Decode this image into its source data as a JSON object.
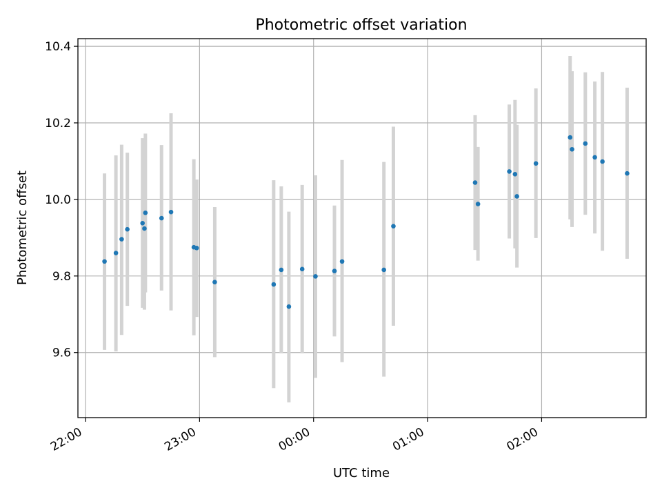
{
  "chart_data": {
    "type": "scatter",
    "title": "Photometric offset variation",
    "xlabel": "UTC time",
    "ylabel": "Photometric offset",
    "x_unit": "minutes after 22:00 UTC",
    "xlim": [
      -4,
      295
    ],
    "ylim": [
      9.43,
      10.42
    ],
    "x_ticks": [
      {
        "value": 0,
        "label": "22:00"
      },
      {
        "value": 60,
        "label": "23:00"
      },
      {
        "value": 120,
        "label": "00:00"
      },
      {
        "value": 180,
        "label": "01:00"
      },
      {
        "value": 240,
        "label": "02:00"
      }
    ],
    "y_ticks": [
      {
        "value": 9.6,
        "label": "9.6"
      },
      {
        "value": 9.8,
        "label": "9.8"
      },
      {
        "value": 10.0,
        "label": "10.0"
      },
      {
        "value": 10.2,
        "label": "10.2"
      },
      {
        "value": 10.4,
        "label": "10.4"
      }
    ],
    "grid": true,
    "marker_color": "#1f77b4",
    "errorbar_color": "#d3d3d3",
    "points": [
      {
        "x": 10,
        "y": 9.838,
        "err_low": 9.607,
        "err_high": 10.068
      },
      {
        "x": 16,
        "y": 9.86,
        "err_low": 9.603,
        "err_high": 10.115
      },
      {
        "x": 19,
        "y": 9.896,
        "err_low": 9.646,
        "err_high": 10.143
      },
      {
        "x": 22,
        "y": 9.922,
        "err_low": 9.722,
        "err_high": 10.122
      },
      {
        "x": 30,
        "y": 9.938,
        "err_low": 9.717,
        "err_high": 10.16
      },
      {
        "x": 31,
        "y": 9.924,
        "err_low": 9.712,
        "err_high": 10.135
      },
      {
        "x": 31.5,
        "y": 9.965,
        "err_low": 9.757,
        "err_high": 10.172
      },
      {
        "x": 40,
        "y": 9.951,
        "err_low": 9.762,
        "err_high": 10.142
      },
      {
        "x": 45,
        "y": 9.967,
        "err_low": 9.71,
        "err_high": 10.225
      },
      {
        "x": 57,
        "y": 9.875,
        "err_low": 9.645,
        "err_high": 10.105
      },
      {
        "x": 58.5,
        "y": 9.873,
        "err_low": 9.693,
        "err_high": 10.052
      },
      {
        "x": 68,
        "y": 9.784,
        "err_low": 9.588,
        "err_high": 9.98
      },
      {
        "x": 99,
        "y": 9.778,
        "err_low": 9.507,
        "err_high": 10.05
      },
      {
        "x": 103,
        "y": 9.816,
        "err_low": 9.598,
        "err_high": 10.034
      },
      {
        "x": 107,
        "y": 9.72,
        "err_low": 9.47,
        "err_high": 9.968
      },
      {
        "x": 114,
        "y": 9.818,
        "err_low": 9.598,
        "err_high": 10.038
      },
      {
        "x": 121,
        "y": 9.799,
        "err_low": 9.534,
        "err_high": 10.063
      },
      {
        "x": 131,
        "y": 9.813,
        "err_low": 9.642,
        "err_high": 9.984
      },
      {
        "x": 135,
        "y": 9.838,
        "err_low": 9.575,
        "err_high": 10.103
      },
      {
        "x": 157,
        "y": 9.816,
        "err_low": 9.537,
        "err_high": 10.098
      },
      {
        "x": 162,
        "y": 9.93,
        "err_low": 9.67,
        "err_high": 10.19
      },
      {
        "x": 205,
        "y": 10.044,
        "err_low": 9.868,
        "err_high": 10.22
      },
      {
        "x": 206.5,
        "y": 9.988,
        "err_low": 9.84,
        "err_high": 10.137
      },
      {
        "x": 223,
        "y": 10.073,
        "err_low": 9.898,
        "err_high": 10.248
      },
      {
        "x": 226,
        "y": 10.066,
        "err_low": 9.872,
        "err_high": 10.26
      },
      {
        "x": 227,
        "y": 10.008,
        "err_low": 9.822,
        "err_high": 10.195
      },
      {
        "x": 237,
        "y": 10.094,
        "err_low": 9.899,
        "err_high": 10.29
      },
      {
        "x": 255,
        "y": 10.162,
        "err_low": 9.948,
        "err_high": 10.375
      },
      {
        "x": 256,
        "y": 10.131,
        "err_low": 9.928,
        "err_high": 10.335
      },
      {
        "x": 263,
        "y": 10.146,
        "err_low": 9.96,
        "err_high": 10.332
      },
      {
        "x": 268,
        "y": 10.11,
        "err_low": 9.911,
        "err_high": 10.308
      },
      {
        "x": 272,
        "y": 10.099,
        "err_low": 9.866,
        "err_high": 10.333
      },
      {
        "x": 285,
        "y": 10.068,
        "err_low": 9.845,
        "err_high": 10.292
      }
    ]
  }
}
